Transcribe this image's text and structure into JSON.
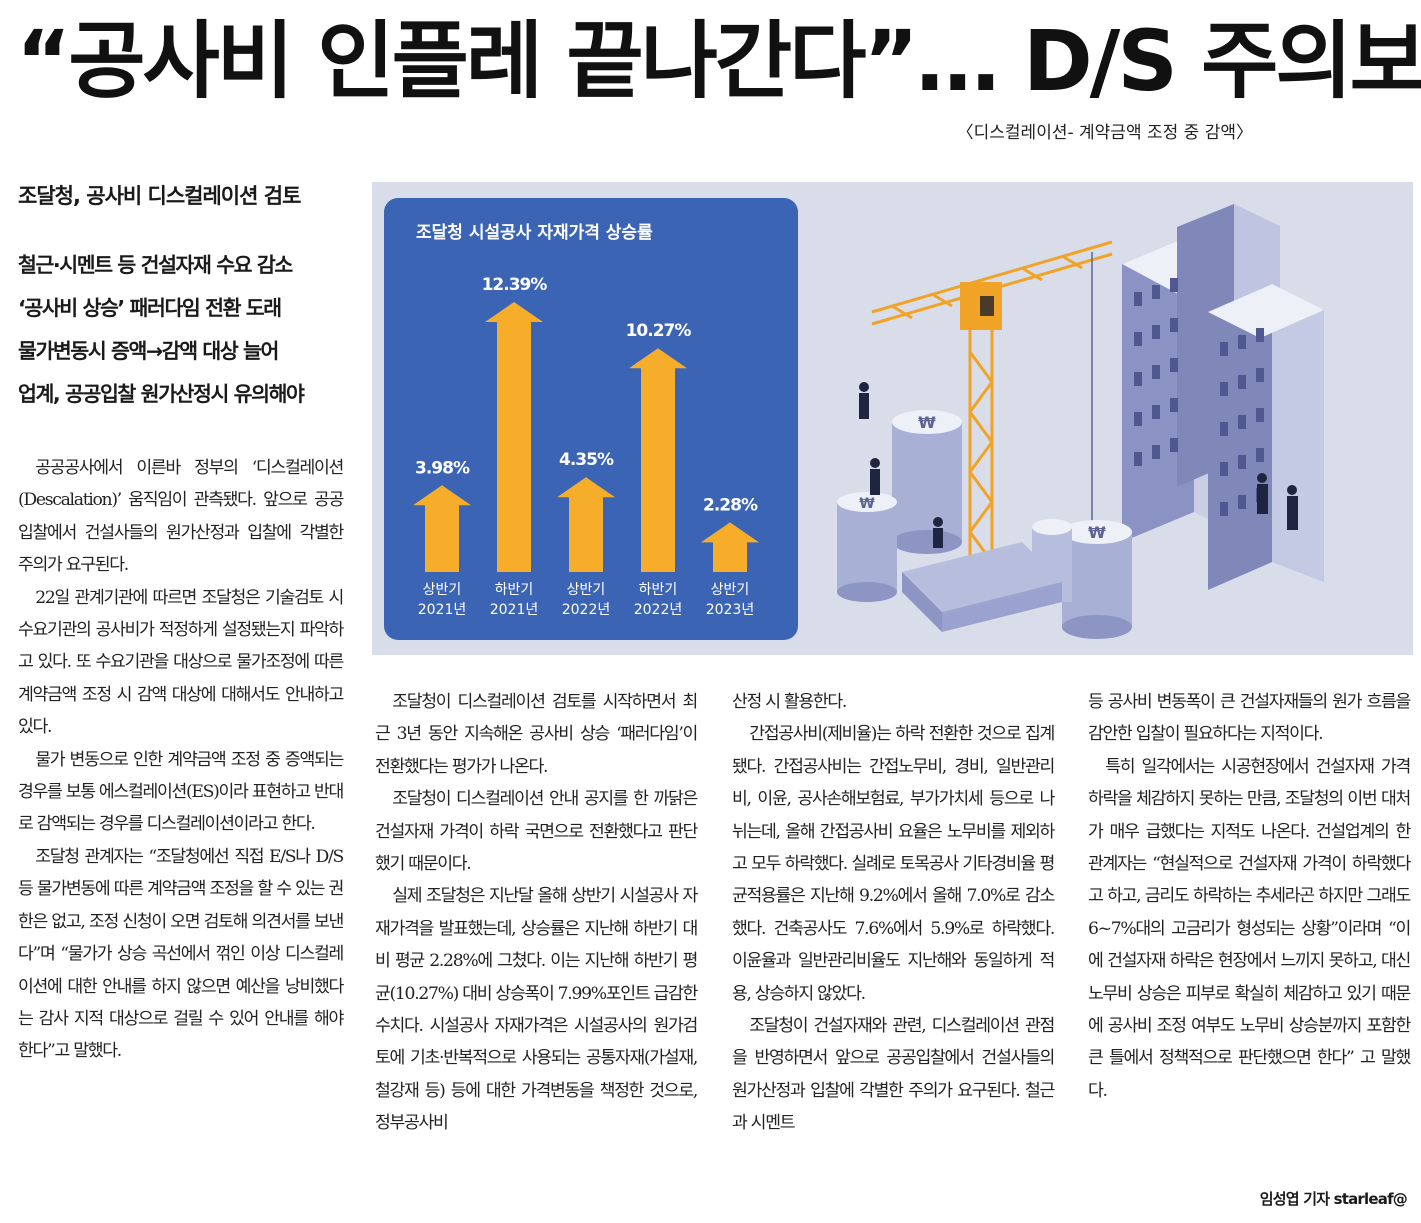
{
  "headline": "“공사비 인플레 끝나간다”… D/S 주의보",
  "caption": "〈디스컬레이션- 계약금액 조정 중 감액〉",
  "subhead": "조달청, 공사비 디스컬레이션 검토",
  "decks": [
    "철근·시멘트 등 건설자재 수요 감소",
    "‘공사비 상승’ 패러다임 전환 도래",
    "물가변동시 증액→감액 대상 늘어",
    "업계, 공공입찰 원가산정시 유의해야"
  ],
  "chart_data": {
    "type": "bar",
    "title": "조달청 시설공사 자재가격 상승률",
    "categories": [
      [
        "상반기",
        "2021년"
      ],
      [
        "하반기",
        "2021년"
      ],
      [
        "상반기",
        "2022년"
      ],
      [
        "하반기",
        "2022년"
      ],
      [
        "상반기",
        "2023년"
      ]
    ],
    "values": [
      3.98,
      12.39,
      4.35,
      10.27,
      2.28
    ],
    "value_labels": [
      "3.98%",
      "12.39%",
      "4.35%",
      "10.27%",
      "2.28%"
    ],
    "unit": "%",
    "bar_color": "#f5ad2a",
    "background_color": "#3b65b4"
  },
  "colors": {
    "illustration_bg": "#d9dde9",
    "chart_bg": "#3b65b4",
    "bar": "#f5ad2a",
    "crane": "#f0a326",
    "building": "#7f88b8"
  },
  "columns": {
    "col1": [
      "공공공사에서 이른바 정부의 ‘디스컬레이션(Descalation)’ 움직임이 관측됐다. 앞으로 공공입찰에서 건설사들의 원가산정과 입찰에 각별한 주의가 요구된다.",
      "22일 관계기관에 따르면 조달청은 기술검토 시 수요기관의 공사비가 적정하게 설정됐는지 파악하고 있다. 또 수요기관을 대상으로 물가조정에 따른 계약금액 조정 시 감액 대상에 대해서도 안내하고 있다.",
      "물가 변동으로 인한 계약금액 조정 중 증액되는 경우를 보통 에스컬레이션(ES)이라 표현하고 반대로 감액되는 경우를 디스컬레이션이라고 한다.",
      "조달청 관계자는 “조달청에선 직접 E/S나 D/S 등 물가변동에 따른 계약금액 조정을 할 수 있는 권한은 없고, 조정 신청이 오면 검토해 의견서를 보낸다”며 “물가가 상승 곡선에서 꺾인 이상 디스컬레이션에 대한 안내를 하지 않으면 예산을 낭비했다는 감사 지적 대상으로 걸릴 수 있어 안내를 해야 한다”고 말했다."
    ],
    "col2": [
      "조달청이 디스컬레이션 검토를 시작하면서 최근 3년 동안 지속해온 공사비 상승 ‘패러다임’이 전환했다는 평가가 나온다.",
      "조달청이 디스컬레이션 안내 공지를 한 까닭은 건설자재 가격이 하락 국면으로 전환했다고 판단했기 때문이다.",
      "실제 조달청은 지난달 올해 상반기 시설공사 자재가격을 발표했는데, 상승률은 지난해 하반기 대비 평균 2.28%에 그쳤다. 이는 지난해 하반기 평균(10.27%) 대비 상승폭이 7.99%포인트 급감한 수치다. 시설공사 자재가격은 시설공사의 원가검토에 기초·반복적으로 사용되는 공통자재(가설재, 철강재 등) 등에 대한 가격변동을 책정한 것으로, 정부공사비"
    ],
    "col3": [
      "산정 시 활용한다.",
      "간접공사비(제비율)는 하락 전환한 것으로 집계됐다. 간접공사비는 간접노무비, 경비, 일반관리비, 이윤, 공사손해보험료, 부가가치세 등으로 나뉘는데, 올해 간접공사비 요율은 노무비를 제외하고 모두 하락했다. 실례로 토목공사 기타경비율 평균적용률은 지난해 9.2%에서 올해 7.0%로 감소했다. 건축공사도 7.6%에서 5.9%로 하락했다. 이윤율과 일반관리비율도 지난해와 동일하게 적용, 상승하지 않았다.",
      "조달청이 건설자재와 관련, 디스컬레이션 관점을 반영하면서 앞으로 공공입찰에서 건설사들의 원가산정과 입찰에 각별한 주의가 요구된다. 철근과 시멘트"
    ],
    "col4": [
      "등 공사비 변동폭이 큰 건설자재들의 원가 흐름을 감안한 입찰이 필요하다는 지적이다.",
      "특히 일각에서는 시공현장에서 건설자재 가격 하락을 체감하지 못하는 만큼, 조달청의 이번 대처가 매우 급했다는 지적도 나온다. 건설업계의 한 관계자는 “현실적으로 건설자재 가격이 하락했다고 하고, 금리도 하락하는 추세라곤 하지만 그래도 6~7%대의 고금리가 형성되는 상황”이라며 “이에 건설자재 하락은 현장에서 느끼지 못하고, 대신 노무비 상승은 피부로 확실히 체감하고 있기 때문에 공사비 조정 여부도 노무비 상승분까지 포함한 큰 틀에서 정책적으로 판단했으면 한다” 고 말했다."
    ]
  },
  "byline": "임성엽 기자 starleaf@"
}
